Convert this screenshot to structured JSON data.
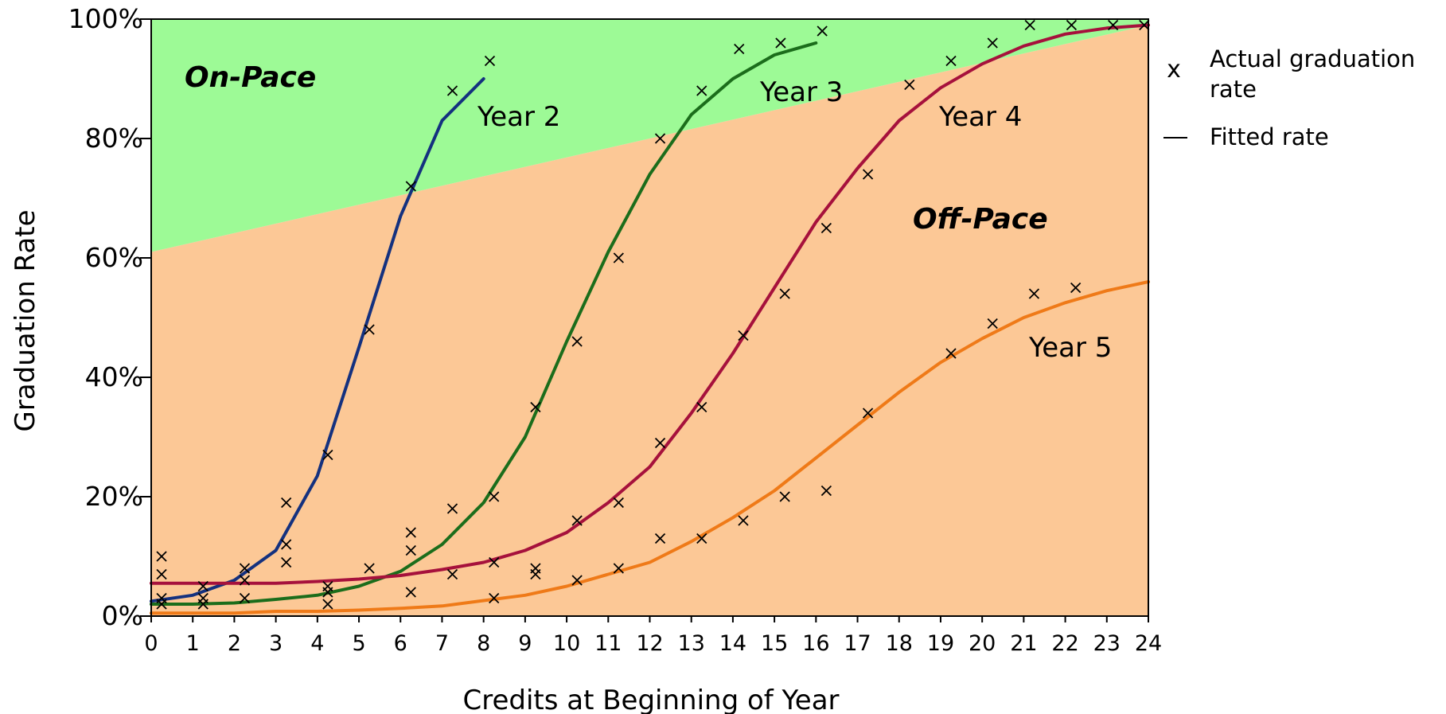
{
  "chart_data": {
    "type": "line",
    "xlabel": "Credits at Beginning of Year",
    "ylabel": "Graduation Rate",
    "xlim": [
      0,
      24
    ],
    "ylim": [
      0,
      100
    ],
    "x_ticks": [
      "0",
      "1",
      "2",
      "3",
      "4",
      "5",
      "6",
      "7",
      "8",
      "9",
      "10",
      "11",
      "12",
      "13",
      "14",
      "15",
      "16",
      "17",
      "18",
      "19",
      "20",
      "21",
      "22",
      "23",
      "24"
    ],
    "y_ticks": [
      "0%",
      "20%",
      "40%",
      "60%",
      "80%",
      "100%"
    ],
    "grid": false,
    "regions": [
      {
        "label": "On-Pace",
        "color": "#9dfa96",
        "boundary": [
          [
            0,
            61
          ],
          [
            24,
            99
          ]
        ]
      },
      {
        "label": "Off-Pace",
        "color": "#fcc896"
      }
    ],
    "legend": {
      "placement": "right",
      "items": [
        {
          "symbol": "x",
          "label_line1": "Actual graduation",
          "label_line2": "rate"
        },
        {
          "symbol": "—",
          "label_line1": "Fitted rate",
          "label_line2": ""
        }
      ]
    },
    "series": [
      {
        "name": "Year 2",
        "color": "#14317f",
        "fitted": [
          [
            0,
            2.5
          ],
          [
            1,
            3.5
          ],
          [
            2,
            6
          ],
          [
            3,
            11
          ],
          [
            4,
            23.5
          ],
          [
            5,
            45
          ],
          [
            6,
            67
          ],
          [
            7,
            83
          ],
          [
            8,
            90
          ]
        ],
        "actual": [
          [
            0.25,
            3
          ],
          [
            0.25,
            7
          ],
          [
            0.25,
            10
          ],
          [
            0.25,
            2
          ],
          [
            1.25,
            5
          ],
          [
            1.25,
            3
          ],
          [
            1.25,
            2
          ],
          [
            2.25,
            6
          ],
          [
            2.25,
            8
          ],
          [
            2.25,
            3
          ],
          [
            3.25,
            19
          ],
          [
            3.25,
            12
          ],
          [
            3.25,
            9
          ],
          [
            4.25,
            27
          ],
          [
            4.25,
            5
          ],
          [
            4.25,
            4
          ],
          [
            4.25,
            2
          ],
          [
            5.25,
            48
          ],
          [
            6.25,
            72
          ],
          [
            7.25,
            88
          ],
          [
            8.15,
            93
          ]
        ]
      },
      {
        "name": "Year 3",
        "color": "#1b6d1b",
        "fitted": [
          [
            0,
            2
          ],
          [
            1,
            2
          ],
          [
            2,
            2.2
          ],
          [
            3,
            2.8
          ],
          [
            4,
            3.5
          ],
          [
            5,
            5
          ],
          [
            6,
            7.5
          ],
          [
            7,
            12
          ],
          [
            8,
            19
          ],
          [
            9,
            30
          ],
          [
            10,
            46
          ],
          [
            11,
            61
          ],
          [
            12,
            74
          ],
          [
            13,
            84
          ],
          [
            14,
            90
          ],
          [
            15,
            94
          ],
          [
            16,
            96
          ]
        ],
        "actual": [
          [
            5.25,
            8
          ],
          [
            6.25,
            14
          ],
          [
            6.25,
            11
          ],
          [
            6.25,
            4
          ],
          [
            7.25,
            18
          ],
          [
            7.25,
            7
          ],
          [
            8.25,
            20
          ],
          [
            9.25,
            35
          ],
          [
            9.25,
            8
          ],
          [
            9.25,
            7
          ],
          [
            10.25,
            46
          ],
          [
            11.25,
            60
          ],
          [
            12.25,
            80
          ],
          [
            13.25,
            88
          ],
          [
            14.15,
            95
          ],
          [
            15.15,
            96
          ],
          [
            16.15,
            98
          ]
        ]
      },
      {
        "name": "Year 4",
        "color": "#a6113c",
        "fitted": [
          [
            0,
            5.5
          ],
          [
            1,
            5.5
          ],
          [
            2,
            5.5
          ],
          [
            3,
            5.5
          ],
          [
            4,
            5.8
          ],
          [
            5,
            6.2
          ],
          [
            6,
            6.8
          ],
          [
            7,
            7.8
          ],
          [
            8,
            9
          ],
          [
            9,
            11
          ],
          [
            10,
            14
          ],
          [
            11,
            19
          ],
          [
            12,
            25
          ],
          [
            13,
            34
          ],
          [
            14,
            44
          ],
          [
            15,
            55
          ],
          [
            16,
            66
          ],
          [
            17,
            75
          ],
          [
            18,
            83
          ],
          [
            19,
            88.5
          ],
          [
            20,
            92.5
          ],
          [
            21,
            95.5
          ],
          [
            22,
            97.5
          ],
          [
            23,
            98.5
          ],
          [
            24,
            99
          ]
        ],
        "actual": [
          [
            8.25,
            9
          ],
          [
            10.25,
            16
          ],
          [
            11.25,
            19
          ],
          [
            12.25,
            29
          ],
          [
            13.25,
            35
          ],
          [
            14.25,
            47
          ],
          [
            15.25,
            54
          ],
          [
            16.25,
            65
          ],
          [
            17.25,
            74
          ],
          [
            18.25,
            89
          ],
          [
            19.25,
            93
          ],
          [
            20.25,
            96
          ],
          [
            21.15,
            99
          ],
          [
            22.15,
            99
          ],
          [
            23.15,
            99
          ],
          [
            23.9,
            99
          ]
        ]
      },
      {
        "name": "Year 5",
        "color": "#ef7a18",
        "fitted": [
          [
            0,
            0.5
          ],
          [
            1,
            0.5
          ],
          [
            2,
            0.5
          ],
          [
            3,
            0.8
          ],
          [
            4,
            0.8
          ],
          [
            5,
            1
          ],
          [
            6,
            1.3
          ],
          [
            7,
            1.7
          ],
          [
            8,
            2.6
          ],
          [
            9,
            3.5
          ],
          [
            10,
            5
          ],
          [
            11,
            7
          ],
          [
            12,
            9
          ],
          [
            13,
            12.5
          ],
          [
            14,
            16.5
          ],
          [
            15,
            21
          ],
          [
            16,
            26.5
          ],
          [
            17,
            32
          ],
          [
            18,
            37.5
          ],
          [
            19,
            42.5
          ],
          [
            20,
            46.5
          ],
          [
            21,
            50
          ],
          [
            22,
            52.5
          ],
          [
            23,
            54.5
          ],
          [
            24,
            56
          ]
        ],
        "actual": [
          [
            8.25,
            3
          ],
          [
            10.25,
            6
          ],
          [
            11.25,
            8
          ],
          [
            12.25,
            13
          ],
          [
            13.25,
            13
          ],
          [
            14.25,
            16
          ],
          [
            15.25,
            20
          ],
          [
            16.25,
            21
          ],
          [
            17.25,
            34
          ],
          [
            19.25,
            44
          ],
          [
            20.25,
            49
          ],
          [
            21.25,
            54
          ],
          [
            22.25,
            55
          ]
        ]
      }
    ]
  }
}
